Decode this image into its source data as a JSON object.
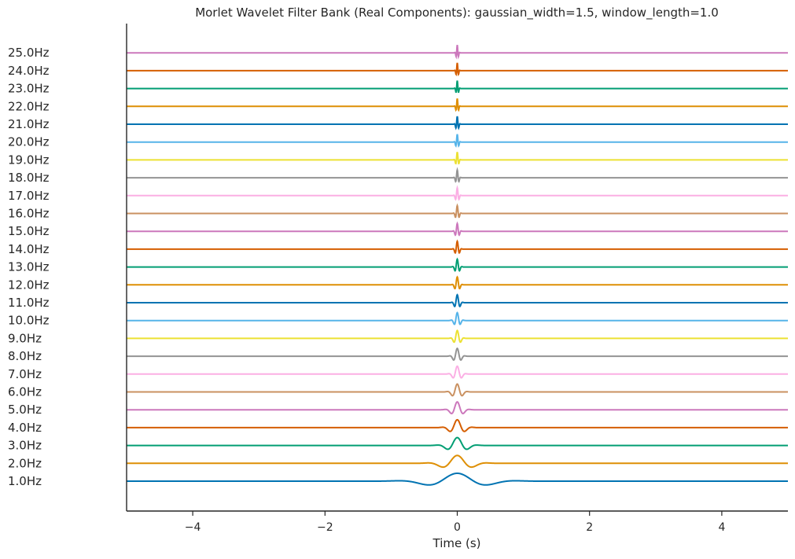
{
  "chart_data": {
    "type": "line",
    "title": "Morlet Wavelet Filter Bank (Real Components): gaussian_width=1.5, window_length=1.0",
    "xlabel": "Time (s)",
    "ylabel": "",
    "xlim": [
      -5,
      5
    ],
    "xticks": [
      -4,
      -2,
      0,
      2,
      4
    ],
    "xtick_labels": [
      "−4",
      "−2",
      "0",
      "2",
      "4"
    ],
    "grid": false,
    "legend": "none",
    "gaussian_width": 1.5,
    "frequencies_hz": [
      1,
      2,
      3,
      4,
      5,
      6,
      7,
      8,
      9,
      10,
      11,
      12,
      13,
      14,
      15,
      16,
      17,
      18,
      19,
      20,
      21,
      22,
      23,
      24,
      25
    ],
    "series": [
      {
        "label": "1.0Hz",
        "frequency": 1,
        "color": "#0173b2"
      },
      {
        "label": "2.0Hz",
        "frequency": 2,
        "color": "#de8f05"
      },
      {
        "label": "3.0Hz",
        "frequency": 3,
        "color": "#029e73"
      },
      {
        "label": "4.0Hz",
        "frequency": 4,
        "color": "#d55e00"
      },
      {
        "label": "5.0Hz",
        "frequency": 5,
        "color": "#cc78bc"
      },
      {
        "label": "6.0Hz",
        "frequency": 6,
        "color": "#ca9161"
      },
      {
        "label": "7.0Hz",
        "frequency": 7,
        "color": "#fbafe4"
      },
      {
        "label": "8.0Hz",
        "frequency": 8,
        "color": "#949494"
      },
      {
        "label": "9.0Hz",
        "frequency": 9,
        "color": "#ece133"
      },
      {
        "label": "10.0Hz",
        "frequency": 10,
        "color": "#56b4e9"
      },
      {
        "label": "11.0Hz",
        "frequency": 11,
        "color": "#0173b2"
      },
      {
        "label": "12.0Hz",
        "frequency": 12,
        "color": "#de8f05"
      },
      {
        "label": "13.0Hz",
        "frequency": 13,
        "color": "#029e73"
      },
      {
        "label": "14.0Hz",
        "frequency": 14,
        "color": "#d55e00"
      },
      {
        "label": "15.0Hz",
        "frequency": 15,
        "color": "#cc78bc"
      },
      {
        "label": "16.0Hz",
        "frequency": 16,
        "color": "#ca9161"
      },
      {
        "label": "17.0Hz",
        "frequency": 17,
        "color": "#fbafe4"
      },
      {
        "label": "18.0Hz",
        "frequency": 18,
        "color": "#949494"
      },
      {
        "label": "19.0Hz",
        "frequency": 19,
        "color": "#ece133"
      },
      {
        "label": "20.0Hz",
        "frequency": 20,
        "color": "#56b4e9"
      },
      {
        "label": "21.0Hz",
        "frequency": 21,
        "color": "#0173b2"
      },
      {
        "label": "22.0Hz",
        "frequency": 22,
        "color": "#de8f05"
      },
      {
        "label": "23.0Hz",
        "frequency": 23,
        "color": "#029e73"
      },
      {
        "label": "24.0Hz",
        "frequency": 24,
        "color": "#d55e00"
      },
      {
        "label": "25.0Hz",
        "frequency": 25,
        "color": "#cc78bc"
      }
    ]
  }
}
